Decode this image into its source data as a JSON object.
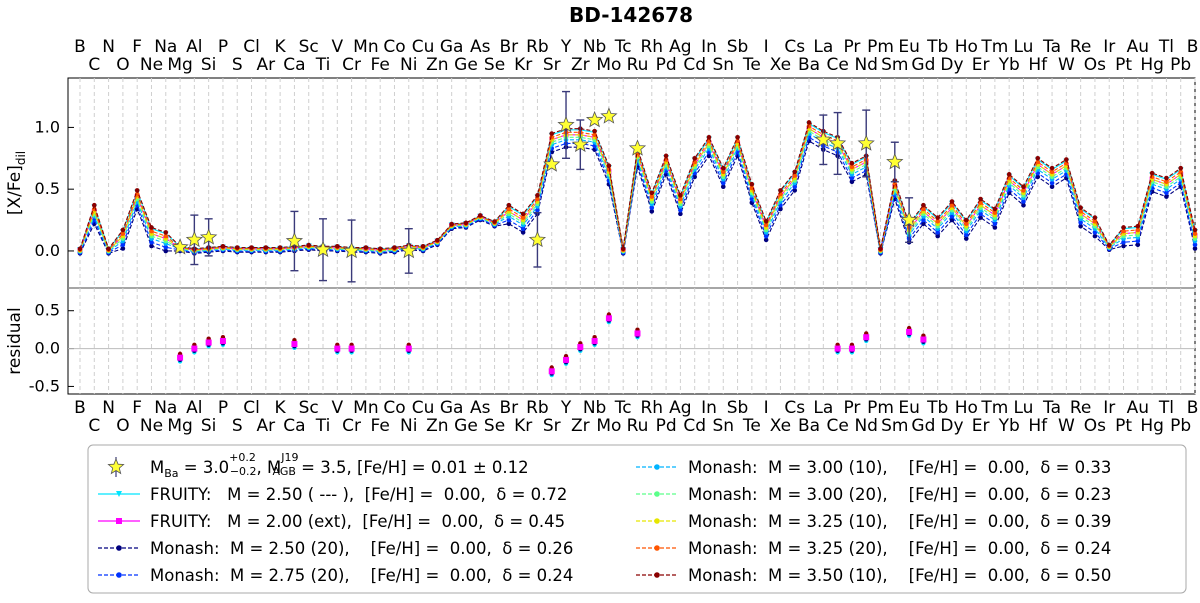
{
  "chart_data": {
    "type": "line",
    "title": "BD-142678",
    "top_panel": {
      "ylabel": "[X/Fe]",
      "ylabel_subscript": "dil",
      "ylim": [
        -0.3,
        1.4
      ],
      "yticks": [
        "0.0",
        "0.5",
        "1.0"
      ],
      "ytick_values": [
        0.0,
        0.5,
        1.0
      ]
    },
    "bottom_panel": {
      "ylabel": "residual",
      "ylim": [
        -0.6,
        0.8
      ],
      "yticks": [
        "-0.5",
        "0.0",
        "0.5"
      ],
      "ytick_values": [
        -0.5,
        0.0,
        0.5
      ]
    },
    "elements": [
      "B",
      "C",
      "N",
      "O",
      "F",
      "Ne",
      "Na",
      "Mg",
      "Al",
      "Si",
      "P",
      "S",
      "Cl",
      "Ar",
      "K",
      "Ca",
      "Sc",
      "Ti",
      "V",
      "Cr",
      "Mn",
      "Fe",
      "Co",
      "Ni",
      "Cu",
      "Zn",
      "Ga",
      "Ge",
      "As",
      "Se",
      "Br",
      "Kr",
      "Rb",
      "Sr",
      "Y",
      "Zr",
      "Nb",
      "Mo",
      "Tc",
      "Ru",
      "Rh",
      "Pd",
      "Ag",
      "Cd",
      "In",
      "Sn",
      "Sb",
      "Te",
      "I",
      "Xe",
      "Cs",
      "Ba",
      "La",
      "Ce",
      "Pr",
      "Nd",
      "Pm",
      "Sm",
      "Eu",
      "Gd",
      "Tb",
      "Dy",
      "Ho",
      "Er",
      "Tm",
      "Yb",
      "Lu",
      "Hf",
      "Ta",
      "W",
      "Re",
      "Os",
      "Ir",
      "Pt",
      "Au",
      "Hg",
      "Tl",
      "Pb",
      "Bi"
    ],
    "observed": {
      "label_parts": {
        "m_ba": "M",
        "m_ba_sub": "Ba",
        "m_ba_val": " = 3.0",
        "m_ba_sup": "+0.2",
        "m_ba_sub2": "−0.2",
        "sep": ", M",
        "m_agb_sup": "J19",
        "m_agb_sub": "AGB",
        "m_agb_val": " = 3.5, [Fe/H] = 0.01 ± 0.12"
      },
      "points": [
        {
          "el": "Mg",
          "y": 0.03,
          "err": 0.0
        },
        {
          "el": "Al",
          "y": 0.09,
          "err": 0.2
        },
        {
          "el": "Si",
          "y": 0.11,
          "err": 0.15
        },
        {
          "el": "Ca",
          "y": 0.08,
          "err": 0.24
        },
        {
          "el": "Ti",
          "y": 0.01,
          "err": 0.25
        },
        {
          "el": "Cr",
          "y": 0.0,
          "err": 0.25
        },
        {
          "el": "Ni",
          "y": 0.0,
          "err": 0.18
        },
        {
          "el": "Rb",
          "y": 0.09,
          "err": 0.22
        },
        {
          "el": "Sr",
          "y": 0.7,
          "err": 0.0
        },
        {
          "el": "Y",
          "y": 1.02,
          "err": 0.27
        },
        {
          "el": "Zr",
          "y": 0.86,
          "err": 0.2
        },
        {
          "el": "Nb",
          "y": 1.06,
          "err": 0.0
        },
        {
          "el": "Mo",
          "y": 1.09,
          "err": 0.0
        },
        {
          "el": "Ru",
          "y": 0.83,
          "err": 0.0
        },
        {
          "el": "La",
          "y": 0.9,
          "err": 0.2
        },
        {
          "el": "Ce",
          "y": 0.87,
          "err": 0.25
        },
        {
          "el": "Nd",
          "y": 0.87,
          "err": 0.27
        },
        {
          "el": "Sm",
          "y": 0.72,
          "err": 0.16
        },
        {
          "el": "Eu",
          "y": 0.25,
          "err": 0.18
        }
      ]
    },
    "series": [
      {
        "name": "FRUITY:   M = 2.50 ( --- ),  [Fe/H] =  0.00,  δ = 0.72",
        "color": "#00e5ff",
        "marker": "tri",
        "dash": false,
        "offset": 0.06
      },
      {
        "name": "FRUITY:   M = 2.00 (ext),  [Fe/H] =  0.00,  δ = 0.45",
        "color": "#ff00ff",
        "marker": "square",
        "dash": false,
        "offset": 0.02
      },
      {
        "name": "Monash:  M = 2.50 (20),    [Fe/H] =  0.00,  δ = 0.26",
        "color": "#00007f",
        "marker": "circle",
        "dash": true,
        "offset": -0.08
      },
      {
        "name": "Monash:  M = 2.75 (20),    [Fe/H] =  0.00,  δ = 0.24",
        "color": "#0033ff",
        "marker": "circle",
        "dash": true,
        "offset": -0.05
      },
      {
        "name": "Monash:  M = 3.00 (10),    [Fe/H] =  0.00,  δ = 0.33",
        "color": "#00b4ff",
        "marker": "circle",
        "dash": true,
        "offset": -0.02
      },
      {
        "name": "Monash:  M = 3.00 (20),    [Fe/H] =  0.00,  δ = 0.23",
        "color": "#5cff8a",
        "marker": "circle",
        "dash": true,
        "offset": 0.0
      },
      {
        "name": "Monash:  M = 3.25 (10),    [Fe/H] =  0.00,  δ = 0.39",
        "color": "#e6e600",
        "marker": "circle",
        "dash": true,
        "offset": 0.02
      },
      {
        "name": "Monash:  M = 3.25 (20),    [Fe/H] =  0.00,  δ = 0.24",
        "color": "#ff5500",
        "marker": "circle",
        "dash": true,
        "offset": 0.04
      },
      {
        "name": "Monash:  M = 3.50 (10),    [Fe/H] =  0.00,  δ = 0.50",
        "color": "#8b0000",
        "marker": "circle",
        "dash": true,
        "offset": 0.07
      }
    ],
    "base_model": [
      0.0,
      0.3,
      0.0,
      0.1,
      0.42,
      0.12,
      0.08,
      0.02,
      0.0,
      0.01,
      0.02,
      0.01,
      0.01,
      0.01,
      0.01,
      0.02,
      0.03,
      0.02,
      0.02,
      0.01,
      0.01,
      0.0,
      0.01,
      0.03,
      0.02,
      0.07,
      0.2,
      0.21,
      0.27,
      0.22,
      0.3,
      0.23,
      0.38,
      0.88,
      0.92,
      0.92,
      0.9,
      0.62,
      0.0,
      0.76,
      0.4,
      0.7,
      0.38,
      0.68,
      0.85,
      0.6,
      0.85,
      0.47,
      0.17,
      0.42,
      0.57,
      0.97,
      0.9,
      0.85,
      0.64,
      0.7,
      0.0,
      0.5,
      0.15,
      0.3,
      0.2,
      0.33,
      0.18,
      0.35,
      0.27,
      0.55,
      0.45,
      0.68,
      0.6,
      0.67,
      0.28,
      0.2,
      0.03,
      0.12,
      0.13,
      0.56,
      0.52,
      0.6,
      0.1
    ],
    "residuals": [
      {
        "el": "Mg",
        "y": -0.12
      },
      {
        "el": "Al",
        "y": 0.0
      },
      {
        "el": "Si",
        "y": 0.08
      },
      {
        "el": "P",
        "y": 0.1
      },
      {
        "el": "Ca",
        "y": 0.06
      },
      {
        "el": "V",
        "y": 0.0
      },
      {
        "el": "Cr",
        "y": 0.0
      },
      {
        "el": "Ni",
        "y": 0.0
      },
      {
        "el": "Sr",
        "y": -0.3
      },
      {
        "el": "Y",
        "y": -0.15
      },
      {
        "el": "Zr",
        "y": 0.02
      },
      {
        "el": "Nb",
        "y": 0.1
      },
      {
        "el": "Mo",
        "y": 0.4
      },
      {
        "el": "Ru",
        "y": 0.2
      },
      {
        "el": "Ce",
        "y": 0.0
      },
      {
        "el": "Pr",
        "y": 0.0
      },
      {
        "el": "Nd",
        "y": 0.15
      },
      {
        "el": "Eu",
        "y": 0.22
      },
      {
        "el": "Gd",
        "y": 0.12
      }
    ]
  }
}
